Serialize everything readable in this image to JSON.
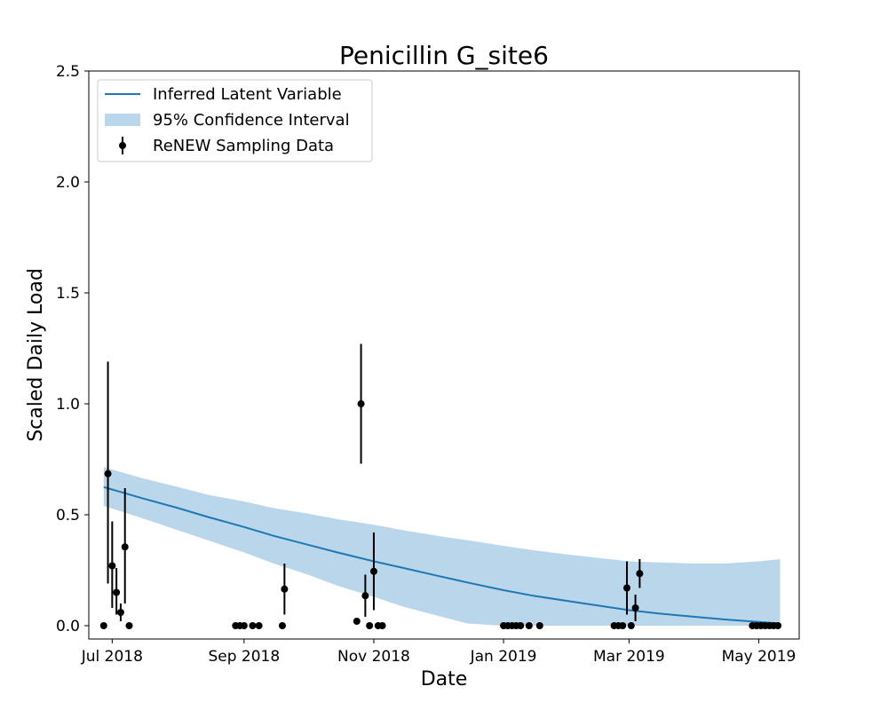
{
  "chart_data": {
    "type": "line",
    "title": "Penicillin G_site6",
    "xlabel": "Date",
    "ylabel": "Scaled Daily Load",
    "xlim": [
      "2018-06-20",
      "2019-05-20"
    ],
    "ylim": [
      -0.06,
      2.5
    ],
    "x_ticks": [
      "2018-07-01",
      "2018-09-01",
      "2018-11-01",
      "2019-01-01",
      "2019-03-01",
      "2019-05-01"
    ],
    "x_tick_labels": [
      "Jul 2018",
      "Sep 2018",
      "Nov 2018",
      "Jan 2019",
      "Mar 2019",
      "May 2019"
    ],
    "y_ticks": [
      0.0,
      0.5,
      1.0,
      1.5,
      2.0,
      2.5
    ],
    "y_tick_labels": [
      "0.0",
      "0.5",
      "1.0",
      "1.5",
      "2.0",
      "2.5"
    ],
    "grid": false,
    "legend_position": "top-left",
    "legend": [
      {
        "label": "Inferred Latent Variable",
        "kind": "line",
        "color": "#1f77b4"
      },
      {
        "label": "95% Confidence Interval",
        "kind": "band",
        "color": "#bad6ea"
      },
      {
        "label": "ReNEW Sampling Data",
        "kind": "errorbar",
        "color": "#000000"
      }
    ],
    "series": [
      {
        "name": "Inferred Latent Variable",
        "type": "line",
        "color": "#1f77b4",
        "x": [
          "2018-06-27",
          "2018-07-15",
          "2018-08-01",
          "2018-08-15",
          "2018-09-01",
          "2018-09-15",
          "2018-10-01",
          "2018-10-15",
          "2018-11-01",
          "2018-11-15",
          "2018-12-01",
          "2018-12-15",
          "2019-01-01",
          "2019-01-15",
          "2019-02-01",
          "2019-02-15",
          "2019-03-01",
          "2019-03-15",
          "2019-04-01",
          "2019-04-15",
          "2019-05-01",
          "2019-05-11"
        ],
        "y": [
          0.625,
          0.575,
          0.53,
          0.49,
          0.445,
          0.405,
          0.365,
          0.33,
          0.29,
          0.26,
          0.225,
          0.195,
          0.16,
          0.135,
          0.11,
          0.09,
          0.07,
          0.055,
          0.04,
          0.028,
          0.017,
          0.01
        ]
      },
      {
        "name": "95% Confidence Interval",
        "type": "band",
        "color": "#bad6ea",
        "x": [
          "2018-06-27",
          "2018-07-15",
          "2018-08-01",
          "2018-08-15",
          "2018-09-01",
          "2018-09-15",
          "2018-10-01",
          "2018-10-15",
          "2018-11-01",
          "2018-11-15",
          "2018-12-01",
          "2018-12-15",
          "2019-01-01",
          "2019-01-15",
          "2019-02-01",
          "2019-02-15",
          "2019-03-01",
          "2019-03-15",
          "2019-04-01",
          "2019-04-15",
          "2019-05-01",
          "2019-05-11"
        ],
        "lower": [
          0.54,
          0.485,
          0.43,
          0.385,
          0.33,
          0.28,
          0.23,
          0.18,
          0.13,
          0.085,
          0.045,
          0.01,
          0.0,
          0.0,
          0.0,
          0.0,
          0.0,
          0.0,
          0.0,
          0.0,
          0.0,
          0.0
        ],
        "upper": [
          0.715,
          0.665,
          0.625,
          0.59,
          0.56,
          0.53,
          0.505,
          0.48,
          0.455,
          0.43,
          0.405,
          0.385,
          0.36,
          0.34,
          0.32,
          0.305,
          0.29,
          0.285,
          0.28,
          0.28,
          0.29,
          0.3
        ]
      },
      {
        "name": "ReNEW Sampling Data",
        "type": "errorbar",
        "color": "#000000",
        "points": [
          {
            "x": "2018-06-27",
            "y": 0.0
          },
          {
            "x": "2018-06-29",
            "y": 0.685,
            "yerr_low": 0.19,
            "yerr_high": 1.19
          },
          {
            "x": "2018-07-01",
            "y": 0.27,
            "yerr_low": 0.08,
            "yerr_high": 0.47
          },
          {
            "x": "2018-07-03",
            "y": 0.15,
            "yerr_low": 0.05,
            "yerr_high": 0.26
          },
          {
            "x": "2018-07-05",
            "y": 0.06,
            "yerr_low": 0.02,
            "yerr_high": 0.1
          },
          {
            "x": "2018-07-07",
            "y": 0.355,
            "yerr_low": 0.1,
            "yerr_high": 0.62
          },
          {
            "x": "2018-07-09",
            "y": 0.0
          },
          {
            "x": "2018-08-28",
            "y": 0.0
          },
          {
            "x": "2018-08-30",
            "y": 0.0
          },
          {
            "x": "2018-09-01",
            "y": 0.0
          },
          {
            "x": "2018-09-05",
            "y": 0.0
          },
          {
            "x": "2018-09-08",
            "y": 0.0
          },
          {
            "x": "2018-09-19",
            "y": 0.0
          },
          {
            "x": "2018-09-20",
            "y": 0.165,
            "yerr_low": 0.05,
            "yerr_high": 0.28
          },
          {
            "x": "2018-10-24",
            "y": 0.02
          },
          {
            "x": "2018-10-26",
            "y": 1.0,
            "yerr_low": 0.73,
            "yerr_high": 1.27
          },
          {
            "x": "2018-10-28",
            "y": 0.135,
            "yerr_low": 0.04,
            "yerr_high": 0.23
          },
          {
            "x": "2018-10-30",
            "y": 0.0
          },
          {
            "x": "2018-11-01",
            "y": 0.245,
            "yerr_low": 0.07,
            "yerr_high": 0.42
          },
          {
            "x": "2018-11-03",
            "y": 0.0
          },
          {
            "x": "2018-11-05",
            "y": 0.0
          },
          {
            "x": "2019-01-01",
            "y": 0.0
          },
          {
            "x": "2019-01-03",
            "y": 0.0
          },
          {
            "x": "2019-01-05",
            "y": 0.0
          },
          {
            "x": "2019-01-07",
            "y": 0.0
          },
          {
            "x": "2019-01-09",
            "y": 0.0
          },
          {
            "x": "2019-01-13",
            "y": 0.0
          },
          {
            "x": "2019-01-18",
            "y": 0.0
          },
          {
            "x": "2019-02-22",
            "y": 0.0
          },
          {
            "x": "2019-02-24",
            "y": 0.0
          },
          {
            "x": "2019-02-26",
            "y": 0.0
          },
          {
            "x": "2019-02-28",
            "y": 0.17,
            "yerr_low": 0.05,
            "yerr_high": 0.29
          },
          {
            "x": "2019-03-02",
            "y": 0.0
          },
          {
            "x": "2019-03-04",
            "y": 0.08,
            "yerr_low": 0.02,
            "yerr_high": 0.14
          },
          {
            "x": "2019-03-06",
            "y": 0.235,
            "yerr_low": 0.17,
            "yerr_high": 0.3
          },
          {
            "x": "2019-04-28",
            "y": 0.0
          },
          {
            "x": "2019-04-30",
            "y": 0.0
          },
          {
            "x": "2019-05-02",
            "y": 0.0
          },
          {
            "x": "2019-05-04",
            "y": 0.0
          },
          {
            "x": "2019-05-06",
            "y": 0.0
          },
          {
            "x": "2019-05-08",
            "y": 0.0
          },
          {
            "x": "2019-05-10",
            "y": 0.0
          }
        ]
      }
    ]
  }
}
